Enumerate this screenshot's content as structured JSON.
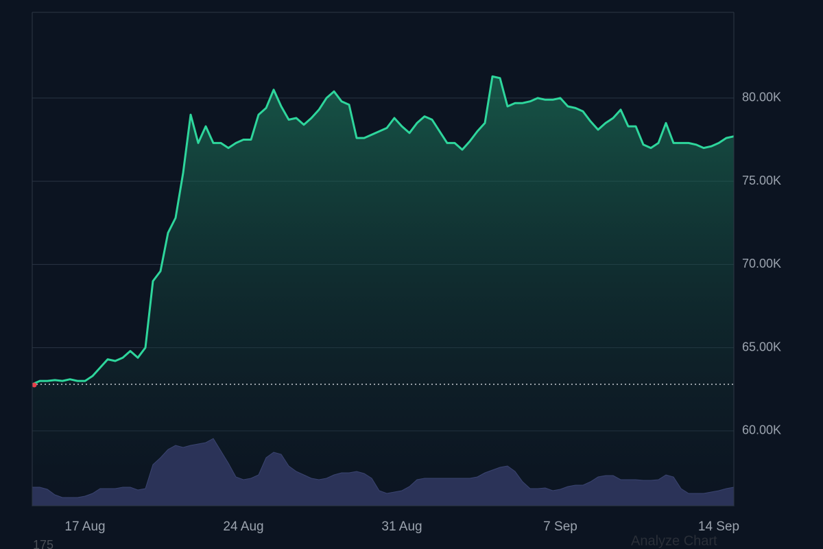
{
  "chart_data": {
    "type": "line",
    "categories": [
      null,
      null,
      null,
      null,
      null,
      null,
      null,
      "17 Aug",
      null,
      null,
      null,
      null,
      null,
      null,
      null,
      null,
      null,
      null,
      null,
      null,
      null,
      null,
      null,
      null,
      null,
      null,
      null,
      null,
      "24 Aug",
      null,
      null,
      null,
      null,
      null,
      null,
      null,
      null,
      null,
      null,
      null,
      null,
      null,
      null,
      null,
      null,
      null,
      null,
      null,
      null,
      "31 Aug",
      null,
      null,
      null,
      null,
      null,
      null,
      null,
      null,
      null,
      null,
      null,
      null,
      null,
      null,
      null,
      null,
      null,
      null,
      null,
      null,
      "7 Sep",
      null,
      null,
      null,
      null,
      null,
      null,
      null,
      null,
      null,
      null,
      null,
      null,
      null,
      null,
      null,
      null,
      null,
      null,
      null,
      null,
      "14 Sep",
      null,
      null
    ],
    "series": [
      {
        "color": "#2ed69c",
        "values": [
          62800,
          63000,
          63000,
          63050,
          63000,
          63100,
          63000,
          63000,
          63300,
          63800,
          64300,
          64200,
          64400,
          64800,
          64400,
          65000,
          69000,
          69600,
          71900,
          72800,
          75500,
          79000,
          77300,
          78300,
          77300,
          77300,
          77000,
          77300,
          77500,
          77500,
          79000,
          79400,
          80500,
          79500,
          78700,
          78800,
          78400,
          78800,
          79300,
          80000,
          80400,
          79800,
          79600,
          77600,
          77600,
          77800,
          78000,
          78200,
          78800,
          78300,
          77900,
          78500,
          78900,
          78700,
          78000,
          77300,
          77300,
          76900,
          77400,
          78000,
          78500,
          81300,
          81200,
          79500,
          79700,
          79700,
          79800,
          80000,
          79900,
          79900,
          80000,
          79500,
          79400,
          79200,
          78600,
          78100,
          78500,
          78800,
          79300,
          78300,
          78300,
          77200,
          77000,
          77300,
          78500,
          77300,
          77300,
          77300,
          77200,
          77000,
          77100,
          77300,
          77600,
          77700
        ]
      },
      {
        "color": "#2b3358",
        "axis": "y2",
        "values": [
          27,
          27,
          24,
          16,
          12,
          12,
          12,
          14,
          18,
          25,
          25,
          25,
          27,
          27,
          23,
          25,
          60,
          70,
          82,
          88,
          85,
          88,
          90,
          92,
          98,
          80,
          62,
          42,
          38,
          40,
          45,
          70,
          78,
          75,
          58,
          50,
          45,
          40,
          38,
          40,
          45,
          48,
          48,
          50,
          47,
          40,
          22,
          18,
          20,
          22,
          28,
          38,
          40,
          40,
          40,
          40,
          40,
          40,
          40,
          42,
          48,
          52,
          56,
          58,
          50,
          35,
          25,
          25,
          26,
          22,
          24,
          28,
          30,
          30,
          35,
          42,
          44,
          44,
          38,
          38,
          38,
          37,
          37,
          38,
          45,
          42,
          25,
          18,
          18,
          18,
          20,
          22,
          25,
          27
        ]
      }
    ],
    "ylim": [
      55500,
      85150
    ],
    "yticks": [
      {
        "value": 60000,
        "label": "60.00K"
      },
      {
        "value": 65000,
        "label": "65.00K"
      },
      {
        "value": 70000,
        "label": "70.00K"
      },
      {
        "value": 75000,
        "label": "75.00K"
      },
      {
        "value": 80000,
        "label": "80.00K"
      }
    ],
    "y2lim": [
      0,
      719
    ],
    "reference_line": 62800,
    "grid": true,
    "footer_left": "175",
    "footer_right": "Analyze Chart"
  }
}
